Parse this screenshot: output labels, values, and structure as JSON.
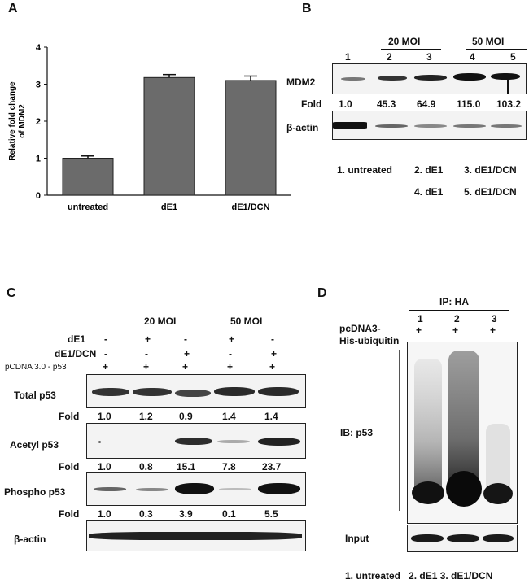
{
  "panels": {
    "a": "A",
    "b": "B",
    "c": "C",
    "d": "D"
  },
  "chart_data": {
    "type": "bar",
    "categories": [
      "untreated",
      "dE1",
      "dE1/DCN"
    ],
    "values": [
      1.0,
      3.18,
      3.1
    ],
    "errors": [
      0.06,
      0.08,
      0.12
    ],
    "ylabel_line1": "Relative fold change",
    "ylabel_line2": "of MDM2",
    "yticks": [
      "0",
      "1",
      "2",
      "3",
      "4"
    ],
    "ylim": [
      0,
      4
    ],
    "bar_color": "#6b6b6b"
  },
  "panel_b": {
    "group_20": "20 MOI",
    "group_50": "50 MOI",
    "lanes": [
      "1",
      "2",
      "3",
      "4",
      "5"
    ],
    "mdm2_label": "MDM2",
    "fold_label": "Fold",
    "fold_values": [
      "1.0",
      "45.3",
      "64.9",
      "115.0",
      "103.2"
    ],
    "actin_label": "β-actin",
    "legend_line1": [
      "1. untreated",
      "2. dE1",
      "3. dE1/DCN"
    ],
    "legend_line2": [
      "4. dE1",
      "5. dE1/DCN"
    ]
  },
  "panel_c": {
    "group_20": "20 MOI",
    "group_50": "50 MOI",
    "row_de1_label": "dE1",
    "row_de1": [
      "-",
      "+",
      "-",
      "+",
      "-"
    ],
    "row_dcn_label": "dE1/DCN",
    "row_dcn": [
      "-",
      "-",
      "+",
      "-",
      "+"
    ],
    "row_p53_label": "pCDNA 3.0 - p53",
    "row_p53": [
      "+",
      "+",
      "+",
      "+",
      "+"
    ],
    "total_label": "Total p53",
    "total_fold": [
      "1.0",
      "1.2",
      "0.9",
      "1.4",
      "1.4"
    ],
    "acetyl_label": "Acetyl p53",
    "acetyl_fold": [
      "1.0",
      "0.8",
      "15.1",
      "7.8",
      "23.7"
    ],
    "phospho_label": "Phospho p53",
    "phospho_fold": [
      "1.0",
      "0.3",
      "3.9",
      "0.1",
      "5.5"
    ],
    "fold_label": "Fold",
    "actin_label": "β-actin"
  },
  "panel_d": {
    "ip_label": "IP: HA",
    "lanes": [
      "1",
      "2",
      "3"
    ],
    "pcdna_line1": "pcDNA3-",
    "pcdna_line2": "His-ubiquitin",
    "plus": [
      "+",
      "+",
      "+"
    ],
    "ib_label": "IB: p53",
    "input_label": "Input",
    "legend": "1. untreated   2. dE1 3. dE1/DCN"
  }
}
